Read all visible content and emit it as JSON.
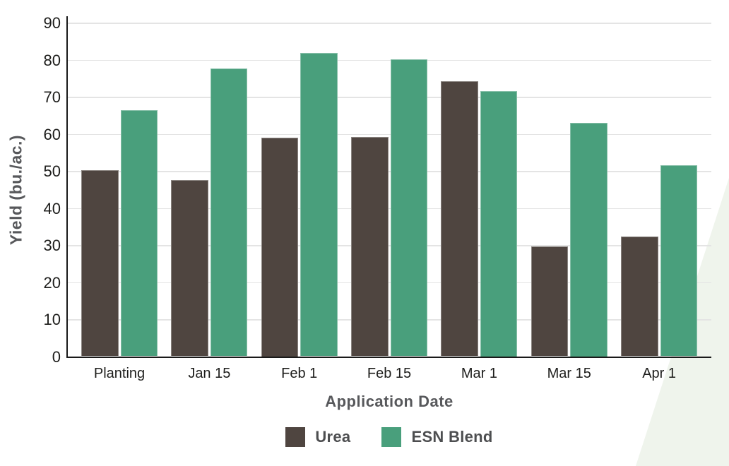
{
  "chart_data": {
    "type": "bar",
    "title": "",
    "xlabel": "Application Date",
    "ylabel": "Yield (bu./ac.)",
    "categories": [
      "Planting",
      "Jan 15",
      "Feb 1",
      "Feb 15",
      "Mar 1",
      "Mar 15",
      "Apr 1"
    ],
    "series": [
      {
        "name": "Urea",
        "color": "#4f4540",
        "values": [
          50.2,
          47.6,
          59.0,
          59.2,
          74.1,
          29.6,
          32.3
        ]
      },
      {
        "name": "ESN Blend",
        "color": "#499f7c",
        "values": [
          66.3,
          77.6,
          81.8,
          80.1,
          71.5,
          63.0,
          51.6
        ]
      }
    ],
    "ylim": [
      0,
      90
    ],
    "ytick_step": 10,
    "grid": true,
    "legend_position": "bottom",
    "colors": {
      "grid": "#e4e4e4",
      "axis": "#1a1a1a",
      "tick_text": "#1d1d1b",
      "category_text": "#1d1d1b",
      "title_text": "#57585b",
      "legend_text": "#4d4e50",
      "accent_wedge": "#eff4ec",
      "background": "#ffffff"
    }
  }
}
